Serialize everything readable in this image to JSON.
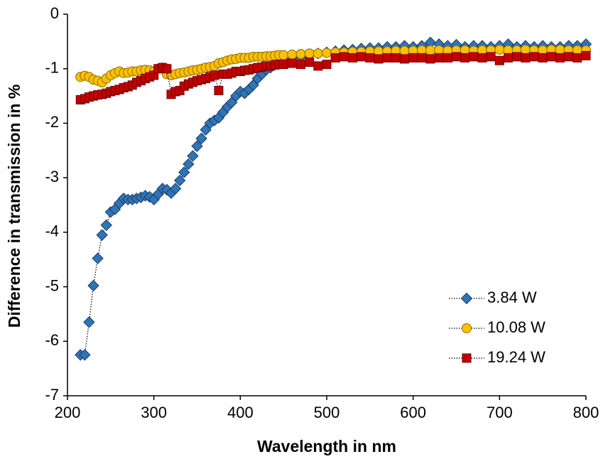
{
  "chart_data": {
    "type": "scatter",
    "xlabel": "Wavelength in nm",
    "ylabel": "Difference in transmission in %",
    "xlim": [
      200,
      800
    ],
    "xticks": [
      200,
      300,
      400,
      500,
      600,
      700,
      800
    ],
    "ylim": [
      -7,
      0
    ],
    "yticks": [
      -7,
      -6,
      -5,
      -4,
      -3,
      -2,
      -1,
      0
    ],
    "legend": "lower right",
    "x": [
      215,
      220,
      225,
      230,
      235,
      240,
      245,
      250,
      255,
      260,
      265,
      270,
      275,
      280,
      285,
      290,
      295,
      300,
      305,
      310,
      315,
      320,
      325,
      330,
      335,
      340,
      345,
      350,
      355,
      360,
      365,
      370,
      375,
      380,
      385,
      390,
      395,
      400,
      405,
      410,
      415,
      420,
      425,
      430,
      435,
      440,
      445,
      450,
      460,
      470,
      480,
      490,
      500,
      510,
      520,
      530,
      540,
      550,
      560,
      570,
      580,
      590,
      600,
      610,
      620,
      630,
      640,
      650,
      660,
      670,
      680,
      690,
      700,
      710,
      720,
      730,
      740,
      750,
      760,
      770,
      780,
      790,
      800
    ],
    "series": [
      {
        "name": "3.84 W",
        "color": "#2e75b6",
        "marker": "diamond",
        "values": [
          -6.25,
          -6.25,
          -5.65,
          -4.98,
          -4.48,
          -4.05,
          -3.87,
          -3.63,
          -3.58,
          -3.47,
          -3.38,
          -3.4,
          -3.4,
          -3.38,
          -3.36,
          -3.33,
          -3.35,
          -3.4,
          -3.3,
          -3.2,
          -3.22,
          -3.28,
          -3.2,
          -3.05,
          -2.9,
          -2.75,
          -2.6,
          -2.42,
          -2.28,
          -2.12,
          -2.0,
          -1.95,
          -1.9,
          -1.8,
          -1.7,
          -1.62,
          -1.5,
          -1.42,
          -1.45,
          -1.38,
          -1.3,
          -1.18,
          -1.1,
          -1.02,
          -0.98,
          -0.92,
          -0.88,
          -0.85,
          -0.8,
          -0.78,
          -0.75,
          -0.72,
          -0.7,
          -0.68,
          -0.66,
          -0.65,
          -0.63,
          -0.62,
          -0.62,
          -0.6,
          -0.6,
          -0.58,
          -0.6,
          -0.58,
          -0.52,
          -0.55,
          -0.58,
          -0.56,
          -0.6,
          -0.58,
          -0.58,
          -0.6,
          -0.58,
          -0.55,
          -0.6,
          -0.58,
          -0.6,
          -0.58,
          -0.6,
          -0.6,
          -0.58,
          -0.58,
          -0.55
        ]
      },
      {
        "name": "10.08 W",
        "color": "#ffc000",
        "marker": "circle",
        "values": [
          -1.15,
          -1.13,
          -1.15,
          -1.2,
          -1.22,
          -1.25,
          -1.18,
          -1.12,
          -1.08,
          -1.05,
          -1.08,
          -1.07,
          -1.05,
          -1.05,
          -1.03,
          -1.02,
          -1.03,
          -1.05,
          -1.0,
          -0.98,
          -1.1,
          -1.12,
          -1.1,
          -1.08,
          -1.07,
          -1.05,
          -1.03,
          -1.02,
          -1.0,
          -0.98,
          -0.97,
          -0.95,
          -0.9,
          -0.88,
          -0.85,
          -0.83,
          -0.82,
          -0.8,
          -0.8,
          -0.8,
          -0.78,
          -0.78,
          -0.78,
          -0.77,
          -0.77,
          -0.76,
          -0.75,
          -0.75,
          -0.74,
          -0.73,
          -0.72,
          -0.72,
          -0.71,
          -0.7,
          -0.7,
          -0.69,
          -0.69,
          -0.68,
          -0.68,
          -0.68,
          -0.67,
          -0.67,
          -0.67,
          -0.66,
          -0.66,
          -0.66,
          -0.67,
          -0.66,
          -0.66,
          -0.67,
          -0.66,
          -0.66,
          -0.65,
          -0.66,
          -0.66,
          -0.65,
          -0.66,
          -0.66,
          -0.65,
          -0.65,
          -0.66,
          -0.66,
          -0.66
        ]
      },
      {
        "name": "19.24 W",
        "color": "#c00000",
        "marker": "square",
        "values": [
          -1.57,
          -1.55,
          -1.52,
          -1.5,
          -1.48,
          -1.47,
          -1.45,
          -1.42,
          -1.4,
          -1.38,
          -1.35,
          -1.33,
          -1.3,
          -1.25,
          -1.22,
          -1.18,
          -1.15,
          -1.12,
          -1.0,
          -0.98,
          -1.0,
          -1.47,
          -1.42,
          -1.4,
          -1.32,
          -1.28,
          -1.25,
          -1.22,
          -1.2,
          -1.18,
          -1.15,
          -1.12,
          -1.4,
          -1.1,
          -1.1,
          -1.08,
          -1.05,
          -1.05,
          -1.03,
          -1.02,
          -1.0,
          -0.98,
          -0.97,
          -0.95,
          -0.95,
          -0.93,
          -0.92,
          -0.92,
          -0.9,
          -0.92,
          -0.88,
          -0.95,
          -0.92,
          -0.8,
          -0.78,
          -0.8,
          -0.78,
          -0.8,
          -0.82,
          -0.8,
          -0.8,
          -0.82,
          -0.8,
          -0.8,
          -0.82,
          -0.8,
          -0.8,
          -0.78,
          -0.8,
          -0.78,
          -0.8,
          -0.78,
          -0.85,
          -0.8,
          -0.78,
          -0.8,
          -0.78,
          -0.8,
          -0.78,
          -0.8,
          -0.78,
          -0.8,
          -0.76
        ]
      }
    ]
  }
}
